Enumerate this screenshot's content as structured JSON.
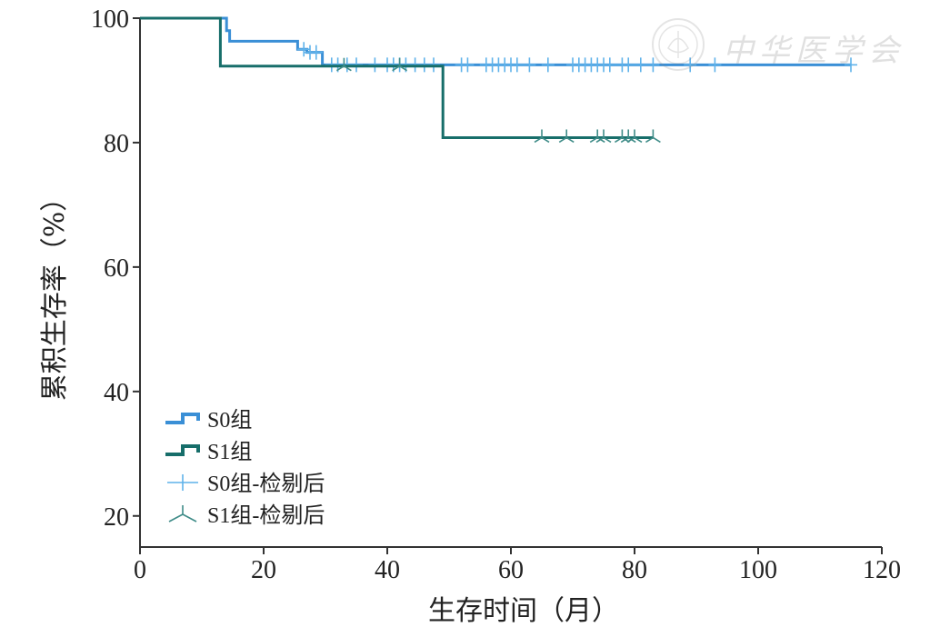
{
  "chart_data": {
    "type": "line",
    "title": "",
    "xlabel": "生存时间（月）",
    "ylabel": "累积生存率（%）",
    "xlim": [
      0,
      120
    ],
    "ylim": [
      15,
      100
    ],
    "xticks": [
      0,
      20,
      40,
      60,
      80,
      100,
      120
    ],
    "yticks": [
      20,
      40,
      60,
      80,
      100
    ],
    "grid": false,
    "legend": "bottom-left",
    "step": true,
    "series": [
      {
        "name": "S0组",
        "color": "#3a8fd6",
        "steps": [
          [
            0,
            100
          ],
          [
            14,
            98
          ],
          [
            14.5,
            96.3
          ],
          [
            25.5,
            96.3
          ],
          [
            25.5,
            95
          ],
          [
            27,
            95
          ],
          [
            27,
            94.5
          ],
          [
            29.5,
            94.5
          ],
          [
            29.5,
            92.5
          ],
          [
            115,
            92.5
          ]
        ],
        "censored": [
          26.5,
          27.5,
          28.5,
          31,
          32,
          33.5,
          35,
          38,
          40,
          41,
          42,
          43,
          44.5,
          46,
          47.5,
          52,
          53,
          56,
          57,
          58,
          59,
          60,
          61,
          63,
          66,
          70,
          71,
          72,
          73,
          74,
          75,
          76,
          78,
          79,
          81,
          83,
          89,
          93,
          115
        ]
      },
      {
        "name": "S1组",
        "color": "#176e6a",
        "steps": [
          [
            0,
            100
          ],
          [
            13,
            100
          ],
          [
            13,
            92.3
          ],
          [
            49,
            92.3
          ],
          [
            49,
            80.8
          ],
          [
            83,
            80.8
          ]
        ],
        "censored": [
          33,
          42,
          65,
          69,
          74,
          75,
          78,
          79,
          80,
          83
        ]
      }
    ],
    "legend_entries": [
      {
        "label": "S0组",
        "symbol": "step",
        "color": "#3a8fd6"
      },
      {
        "label": "S1组",
        "symbol": "step",
        "color": "#176e6a"
      },
      {
        "label": "S0组-检剔后",
        "symbol": "plus",
        "color": "#5fb2ea"
      },
      {
        "label": "S1组-检剔后",
        "symbol": "tri",
        "color": "#3f8c88"
      }
    ]
  },
  "watermark": {
    "text": "中华医学会"
  }
}
